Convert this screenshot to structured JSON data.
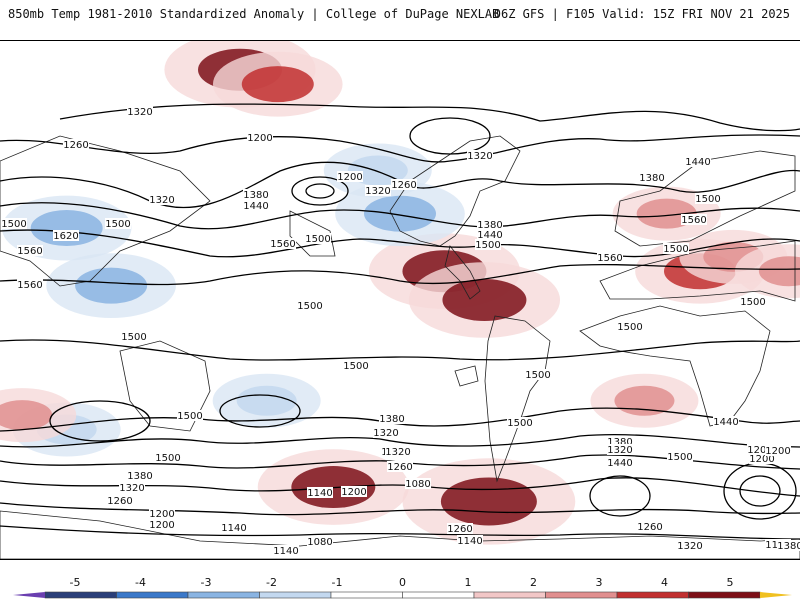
{
  "header": {
    "left_title": "850mb Temp 1981-2010 Standardized Anomaly | College of DuPage NEXLAB",
    "right_title": "06Z GFS | F105 Valid: 15Z FRI NOV 21 2025"
  },
  "colorbar": {
    "ticks": [
      "-5",
      "-4",
      "-3",
      "-2",
      "-1",
      "0",
      "1",
      "2",
      "3",
      "4",
      "5"
    ],
    "bins": [
      {
        "from": -5,
        "to": -4,
        "color": "#2a3e78"
      },
      {
        "from": -4,
        "to": -3,
        "color": "#3a78c9"
      },
      {
        "from": -3,
        "to": -2,
        "color": "#8ab4e2"
      },
      {
        "from": -2,
        "to": -1,
        "color": "#c3d8ef"
      },
      {
        "from": -1,
        "to": 0,
        "color": "#ffffff"
      },
      {
        "from": 0,
        "to": 1,
        "color": "#ffffff"
      },
      {
        "from": 1,
        "to": 2,
        "color": "#f2c7c7"
      },
      {
        "from": 2,
        "to": 3,
        "color": "#e18f8f"
      },
      {
        "from": 3,
        "to": 4,
        "color": "#c12f2f"
      },
      {
        "from": 4,
        "to": 5,
        "color": "#7d0f17"
      }
    ],
    "low_arrow_color": "#6a3fb0",
    "high_arrow_color": "#f0c020"
  },
  "height_labels": [
    "1320",
    "1260",
    "1200",
    "1200",
    "1320",
    "1260",
    "1320",
    "1380",
    "1440",
    "1500",
    "1620",
    "1560",
    "1560",
    "1500",
    "1560",
    "1500",
    "1320",
    "1380",
    "1440",
    "1500",
    "1560",
    "1380",
    "1440",
    "1500",
    "1560",
    "1500",
    "1500",
    "1500",
    "1500",
    "1500",
    "1500",
    "1500",
    "1500",
    "1500",
    "1500",
    "1440",
    "1380",
    "1320",
    "1440",
    "1380",
    "1320",
    "1440",
    "1380",
    "1320",
    "1260",
    "1200",
    "1140",
    "1200",
    "1320",
    "1260",
    "1140",
    "1080",
    "1200",
    "1140",
    "1260",
    "1080",
    "1140",
    "1320",
    "1260",
    "1140",
    "1200",
    "1500",
    "1200",
    "1140",
    "1380",
    "1200"
  ],
  "anomalies": [
    {
      "lon": -72,
      "lat": 80,
      "value": 4
    },
    {
      "lon": -55,
      "lat": 75,
      "value": 3
    },
    {
      "lon": 120,
      "lat": 30,
      "value": 2
    },
    {
      "lon": 135,
      "lat": 10,
      "value": 3
    },
    {
      "lon": 150,
      "lat": 15,
      "value": 2
    },
    {
      "lon": 175,
      "lat": 10,
      "value": 2
    },
    {
      "lon": -150,
      "lat": 25,
      "value": -3
    },
    {
      "lon": -130,
      "lat": 5,
      "value": -3
    },
    {
      "lon": 20,
      "lat": 10,
      "value": 4
    },
    {
      "lon": 38,
      "lat": 0,
      "value": 4
    },
    {
      "lon": -30,
      "lat": -65,
      "value": 4
    },
    {
      "lon": 40,
      "lat": -70,
      "value": 5
    },
    {
      "lon": 0,
      "lat": 30,
      "value": -3
    },
    {
      "lon": -10,
      "lat": 45,
      "value": -2
    },
    {
      "lon": -60,
      "lat": -35,
      "value": -2
    },
    {
      "lon": -150,
      "lat": -45,
      "value": -2
    },
    {
      "lon": -170,
      "lat": -40,
      "value": 2
    },
    {
      "lon": 110,
      "lat": -35,
      "value": 2
    }
  ]
}
